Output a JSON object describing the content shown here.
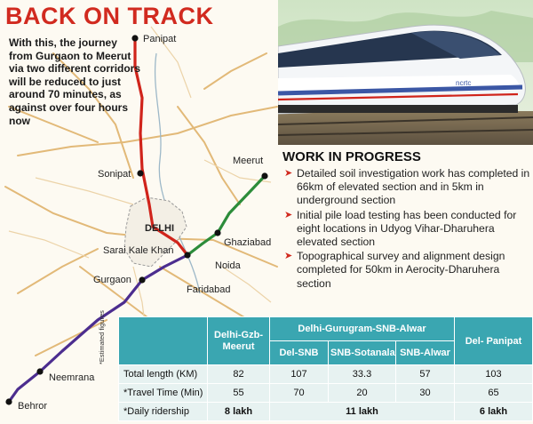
{
  "headline": "BACK ON TRACK",
  "intro": "With this, the journey from Gurgaon to Meerut via two different corridors will be reduced to just around 70 minutes, as against over four hours now",
  "cities": {
    "panipat": "Panipat",
    "sonipat": "Sonipat",
    "meerut": "Meerut",
    "delhi": "DELHI",
    "sarai_kale_khan": "Sarai Kale Khan",
    "ghaziabad": "Ghaziabad",
    "noida": "Noida",
    "gurgaon": "Gurgaon",
    "faridabad": "Faridabad",
    "neemrana": "Neemrana",
    "behror": "Behror"
  },
  "train_logo": "ncrtc",
  "corridor_colors": {
    "panipat": "#d0241b",
    "meerut": "#2c8c3a",
    "alwar": "#4c2d8f"
  },
  "work_in_progress": {
    "title": "WORK IN PROGRESS",
    "items": [
      "Detailed soil investigation work has completed in 66km of elevated section and in 5km in underground section",
      "Initial pile load testing has been conducted for eight locations in Udyog Vihar-Dharuhera elevated section",
      "Topographical survey and alignment design completed for 50km in Aerocity-Dharuhera section"
    ]
  },
  "estimated_note": "*Estimated figures",
  "table": {
    "col_delhi_gzb": "Delhi-Gzb-Meerut",
    "group_ggn_alwar": "Delhi-Gurugram-SNB-Alwar",
    "col_del_panipat": "Del- Panipat",
    "sub_del_snb": "Del-SNB",
    "sub_snb_sotanala": "SNB-Sotanala",
    "sub_snb_alwar": "SNB-Alwar",
    "rows": [
      {
        "label": "Total length (KM)",
        "values": [
          "82",
          "107",
          "33.3",
          "57",
          "103"
        ]
      },
      {
        "label": "*Travel Time (Min)",
        "values": [
          "55",
          "70",
          "20",
          "30",
          "65"
        ]
      }
    ],
    "ridership": {
      "label": "*Daily ridership",
      "delhi_gzb": "8 lakh",
      "ggn_alwar": "11 lakh",
      "del_panipat": "6 lakh"
    }
  }
}
